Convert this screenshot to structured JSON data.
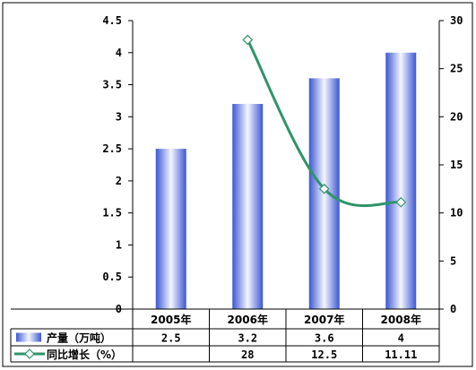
{
  "chart_data": {
    "type": "bar",
    "categories": [
      "2005年",
      "2006年",
      "2007年",
      "2008年"
    ],
    "series": [
      {
        "name": "产量（万吨）",
        "type": "bar",
        "axis": "left",
        "values": [
          2.5,
          3.2,
          3.6,
          4
        ],
        "labels": [
          "2.5",
          "3.2",
          "3.6",
          "4"
        ]
      },
      {
        "name": "同比增长（%）",
        "type": "line",
        "axis": "right",
        "values": [
          null,
          28,
          12.5,
          11.11
        ],
        "labels": [
          "",
          "28",
          "12.5",
          "11.11"
        ]
      }
    ],
    "ylim_left": [
      0,
      4.5
    ],
    "yticks_left": [
      "0",
      "0.5",
      "1",
      "1.5",
      "2",
      "2.5",
      "3",
      "3.5",
      "4",
      "4.5"
    ],
    "ylim_right": [
      0,
      30
    ],
    "yticks_right": [
      "0",
      "5",
      "10",
      "15",
      "20",
      "25",
      "30"
    ],
    "data_table": true,
    "grid": false,
    "colors": {
      "bar_edge": "#3c57d2",
      "bar_light": "#f4f6ff",
      "line": "#2e9468",
      "marker_fill": "#ffffff"
    }
  }
}
